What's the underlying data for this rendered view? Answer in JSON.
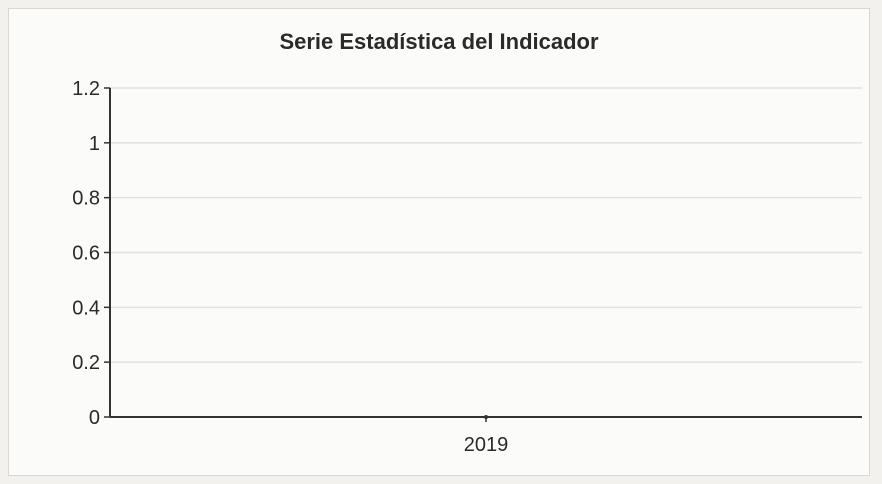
{
  "chart_data": {
    "type": "line",
    "title": "Serie Estadística del Indicador",
    "xlabel": "",
    "ylabel": "",
    "categories": [
      "2019"
    ],
    "series": [
      {
        "values": [
          0
        ]
      }
    ],
    "ylim": [
      0,
      1.2
    ],
    "yticks": [
      "0",
      "0.2",
      "0.4",
      "0.6",
      "0.8",
      "1",
      "1.2"
    ],
    "grid": true,
    "colors": {
      "grid": "#e3e2df",
      "axis": "#333333",
      "series": "#333333"
    }
  }
}
